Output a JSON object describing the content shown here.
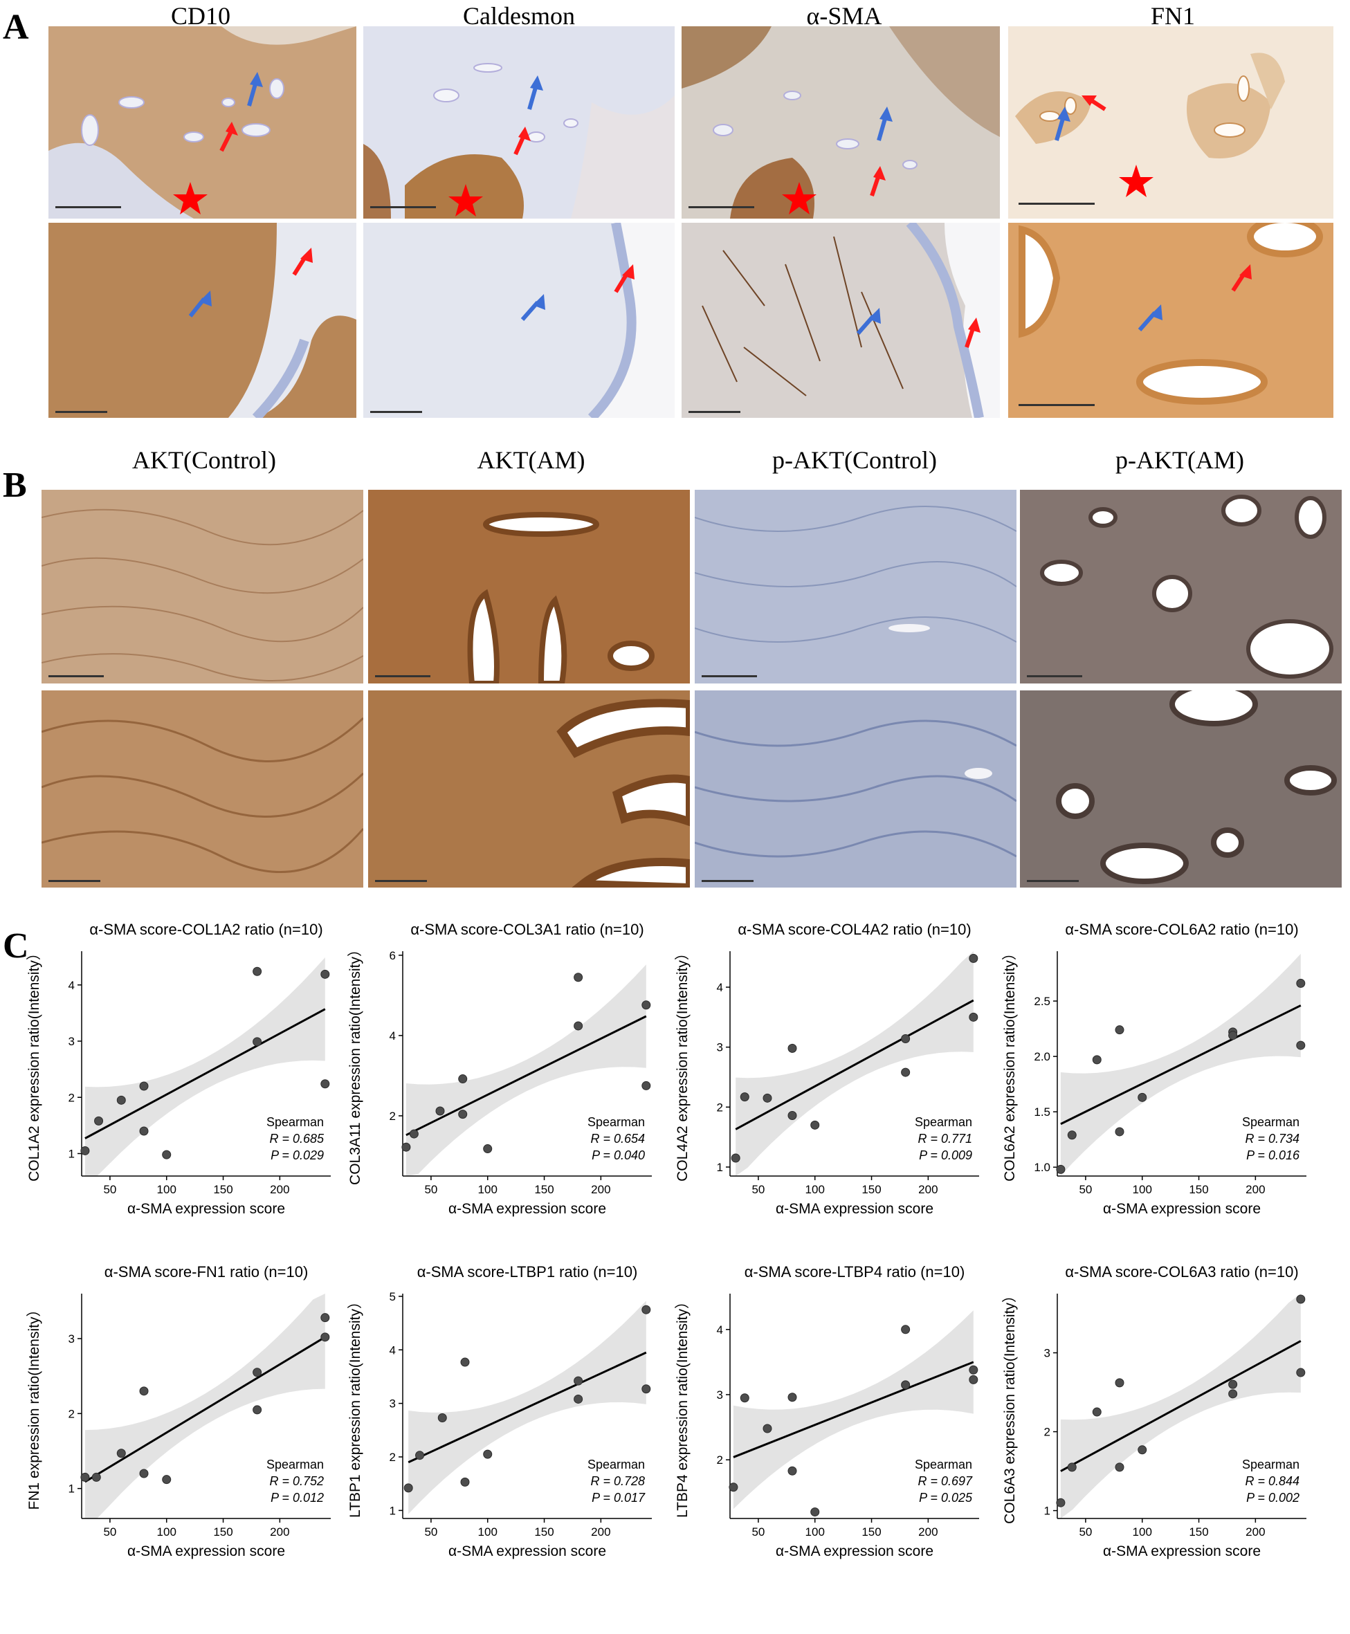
{
  "panels": {
    "A": {
      "letter": "A",
      "columns": [
        "CD10",
        "Caldesmon",
        "α-SMA",
        "FN1"
      ]
    },
    "B": {
      "letter": "B",
      "columns": [
        "AKT(Control)",
        "AKT(AM)",
        "p-AKT(Control)",
        "p-AKT(AM)"
      ]
    },
    "C": {
      "letter": "C"
    }
  },
  "colors": {
    "stain_brown": "#b07a45",
    "stain_light": "#e8d4bf",
    "hematoxylin_blue": "#b9c3dc",
    "arrow_red": "#ff1a1a",
    "arrow_blue": "#3d6fd6",
    "star_red": "#ff0000",
    "fit_line": "#000000",
    "ci_band": "#e3e3e3",
    "points": "#4d4d4d"
  },
  "icons": [
    "red-arrow-icon",
    "blue-arrow-icon",
    "red-star-icon",
    "scale-bar-icon"
  ],
  "chart_data": [
    {
      "type": "scatter",
      "title": "α-SMA  score-COL1A2 ratio (n=10)",
      "xlabel": "α-SMA expression score",
      "ylabel": "COL1A2 expression ratio(Intensity）",
      "xlim": [
        25,
        245
      ],
      "ylim": [
        0.6,
        4.6
      ],
      "xticks": [
        50,
        100,
        150,
        200
      ],
      "yticks": [
        1,
        2,
        3,
        4
      ],
      "points": [
        [
          28,
          1.05
        ],
        [
          40,
          1.58
        ],
        [
          60,
          1.95
        ],
        [
          80,
          2.2
        ],
        [
          80,
          1.4
        ],
        [
          100,
          0.98
        ],
        [
          180,
          2.99
        ],
        [
          180,
          4.24
        ],
        [
          240,
          2.24
        ],
        [
          240,
          4.19
        ]
      ],
      "fit": [
        [
          28,
          1.27
        ],
        [
          240,
          3.57
        ]
      ],
      "stats": {
        "method": "Spearman",
        "R": "R = 0.685",
        "P": "P = 0.029"
      }
    },
    {
      "type": "scatter",
      "title": "α-SMA score-COL3A1 ratio (n=10)",
      "xlabel": "α-SMA expression score",
      "ylabel": "COL3A11 expression ratio(Intensity）",
      "xlim": [
        25,
        245
      ],
      "ylim": [
        0.5,
        6.1
      ],
      "xticks": [
        50,
        100,
        150,
        200
      ],
      "yticks": [
        2,
        4,
        6
      ],
      "points": [
        [
          28,
          1.22
        ],
        [
          35,
          1.55
        ],
        [
          58,
          2.12
        ],
        [
          78,
          2.92
        ],
        [
          78,
          2.04
        ],
        [
          100,
          1.18
        ],
        [
          180,
          4.24
        ],
        [
          180,
          5.45
        ],
        [
          240,
          4.76
        ],
        [
          240,
          2.75
        ]
      ],
      "fit": [
        [
          28,
          1.52
        ],
        [
          240,
          4.48
        ]
      ],
      "stats": {
        "method": "Spearman",
        "R": "R = 0.654",
        "P": "P = 0.040"
      }
    },
    {
      "type": "scatter",
      "title": "α-SMA  score-COL4A2 ratio (n=10)",
      "xlabel": "α-SMA expression score",
      "ylabel": "COL4A2 expression ratio(Intensity）",
      "xlim": [
        25,
        245
      ],
      "ylim": [
        0.85,
        4.6
      ],
      "xticks": [
        50,
        100,
        150,
        200
      ],
      "yticks": [
        1,
        2,
        3,
        4
      ],
      "points": [
        [
          30,
          1.15
        ],
        [
          38,
          2.17
        ],
        [
          58,
          2.15
        ],
        [
          80,
          2.98
        ],
        [
          80,
          1.86
        ],
        [
          100,
          1.7
        ],
        [
          180,
          3.14
        ],
        [
          180,
          2.58
        ],
        [
          240,
          4.48
        ],
        [
          240,
          3.5
        ]
      ],
      "fit": [
        [
          30,
          1.63
        ],
        [
          240,
          3.78
        ]
      ],
      "stats": {
        "method": "Spearman",
        "R": "R = 0.771",
        "P": "P = 0.009"
      }
    },
    {
      "type": "scatter",
      "title": "α-SMA  score-COL6A2 ratio (n=10)",
      "xlabel": "α-SMA expression score",
      "ylabel": "COL6A2 expression ratio(Intensity）",
      "xlim": [
        25,
        245
      ],
      "ylim": [
        0.92,
        2.95
      ],
      "xticks": [
        50,
        100,
        150,
        200
      ],
      "yticks": [
        1.0,
        1.5,
        2.0,
        2.5
      ],
      "ytick_labels": [
        "1.0",
        "1.5",
        "2.0",
        "2.5"
      ],
      "points": [
        [
          28,
          0.98
        ],
        [
          38,
          1.29
        ],
        [
          60,
          1.97
        ],
        [
          80,
          2.24
        ],
        [
          80,
          1.32
        ],
        [
          100,
          1.63
        ],
        [
          180,
          2.22
        ],
        [
          180,
          2.19
        ],
        [
          240,
          2.66
        ],
        [
          240,
          2.1
        ]
      ],
      "fit": [
        [
          28,
          1.39
        ],
        [
          240,
          2.46
        ]
      ],
      "stats": {
        "method": "Spearman",
        "R": "R = 0.734",
        "P": "P = 0.016"
      }
    },
    {
      "type": "scatter",
      "title": "α-SMA  score-FN1 ratio (n=10)",
      "xlabel": "α-SMA expression score",
      "ylabel": "FN1 expression ratio(Intensity）",
      "xlim": [
        25,
        245
      ],
      "ylim": [
        0.6,
        3.6
      ],
      "xticks": [
        50,
        100,
        150,
        200
      ],
      "yticks": [
        1,
        2,
        3
      ],
      "points": [
        [
          28,
          1.15
        ],
        [
          38,
          1.15
        ],
        [
          60,
          1.47
        ],
        [
          80,
          2.3
        ],
        [
          80,
          1.2
        ],
        [
          100,
          1.12
        ],
        [
          180,
          2.55
        ],
        [
          180,
          2.05
        ],
        [
          240,
          3.28
        ],
        [
          240,
          3.02
        ]
      ],
      "fit": [
        [
          28,
          1.09
        ],
        [
          240,
          3.02
        ]
      ],
      "stats": {
        "method": "Spearman",
        "R": "R = 0.752",
        "P": "P = 0.012"
      }
    },
    {
      "type": "scatter",
      "title": "α-SMA  score-LTBP1 ratio (n=10)",
      "xlabel": "α-SMA expression score",
      "ylabel": "LTBP1 expression ratio(Intensity）",
      "xlim": [
        25,
        245
      ],
      "ylim": [
        0.85,
        5.05
      ],
      "xticks": [
        50,
        100,
        150,
        200
      ],
      "yticks": [
        1,
        2,
        3,
        4,
        5
      ],
      "points": [
        [
          30,
          1.42
        ],
        [
          40,
          2.03
        ],
        [
          60,
          2.73
        ],
        [
          80,
          3.77
        ],
        [
          80,
          1.53
        ],
        [
          100,
          2.05
        ],
        [
          180,
          3.42
        ],
        [
          180,
          3.08
        ],
        [
          240,
          4.75
        ],
        [
          240,
          3.27
        ]
      ],
      "fit": [
        [
          30,
          1.9
        ],
        [
          240,
          3.95
        ]
      ],
      "stats": {
        "method": "Spearman",
        "R": "R = 0.728",
        "P": "P = 0.017"
      }
    },
    {
      "type": "scatter",
      "title": "α-SMA  score-LTBP4 ratio (n=10)",
      "xlabel": "α-SMA expression score",
      "ylabel": "LTBP4 expression ratio(Intensity）",
      "xlim": [
        25,
        245
      ],
      "ylim": [
        1.1,
        4.55
      ],
      "xticks": [
        50,
        100,
        150,
        200
      ],
      "yticks": [
        2,
        3,
        4
      ],
      "points": [
        [
          28,
          1.58
        ],
        [
          38,
          2.95
        ],
        [
          58,
          2.48
        ],
        [
          80,
          2.96
        ],
        [
          80,
          1.83
        ],
        [
          100,
          1.2
        ],
        [
          180,
          4.0
        ],
        [
          180,
          3.15
        ],
        [
          240,
          3.38
        ],
        [
          240,
          3.23
        ]
      ],
      "fit": [
        [
          28,
          2.04
        ],
        [
          240,
          3.5
        ]
      ],
      "stats": {
        "method": "Spearman",
        "R": "R = 0.697",
        "P": "P = 0.025"
      }
    },
    {
      "type": "scatter",
      "title": "α-SMA  score-COL6A3 ratio (n=10)",
      "xlabel": "α-SMA expression score",
      "ylabel": "COL6A3 expression ratio(Intensity）",
      "xlim": [
        25,
        245
      ],
      "ylim": [
        0.9,
        3.75
      ],
      "xticks": [
        50,
        100,
        150,
        200
      ],
      "yticks": [
        1,
        2,
        3
      ],
      "points": [
        [
          28,
          1.1
        ],
        [
          38,
          1.55
        ],
        [
          60,
          2.25
        ],
        [
          80,
          2.62
        ],
        [
          80,
          1.55
        ],
        [
          100,
          1.77
        ],
        [
          180,
          2.6
        ],
        [
          180,
          2.48
        ],
        [
          240,
          3.68
        ],
        [
          240,
          2.75
        ]
      ],
      "fit": [
        [
          28,
          1.5
        ],
        [
          240,
          3.15
        ]
      ],
      "stats": {
        "method": "Spearman",
        "R": "R = 0.844",
        "P": "P = 0.002"
      }
    }
  ]
}
